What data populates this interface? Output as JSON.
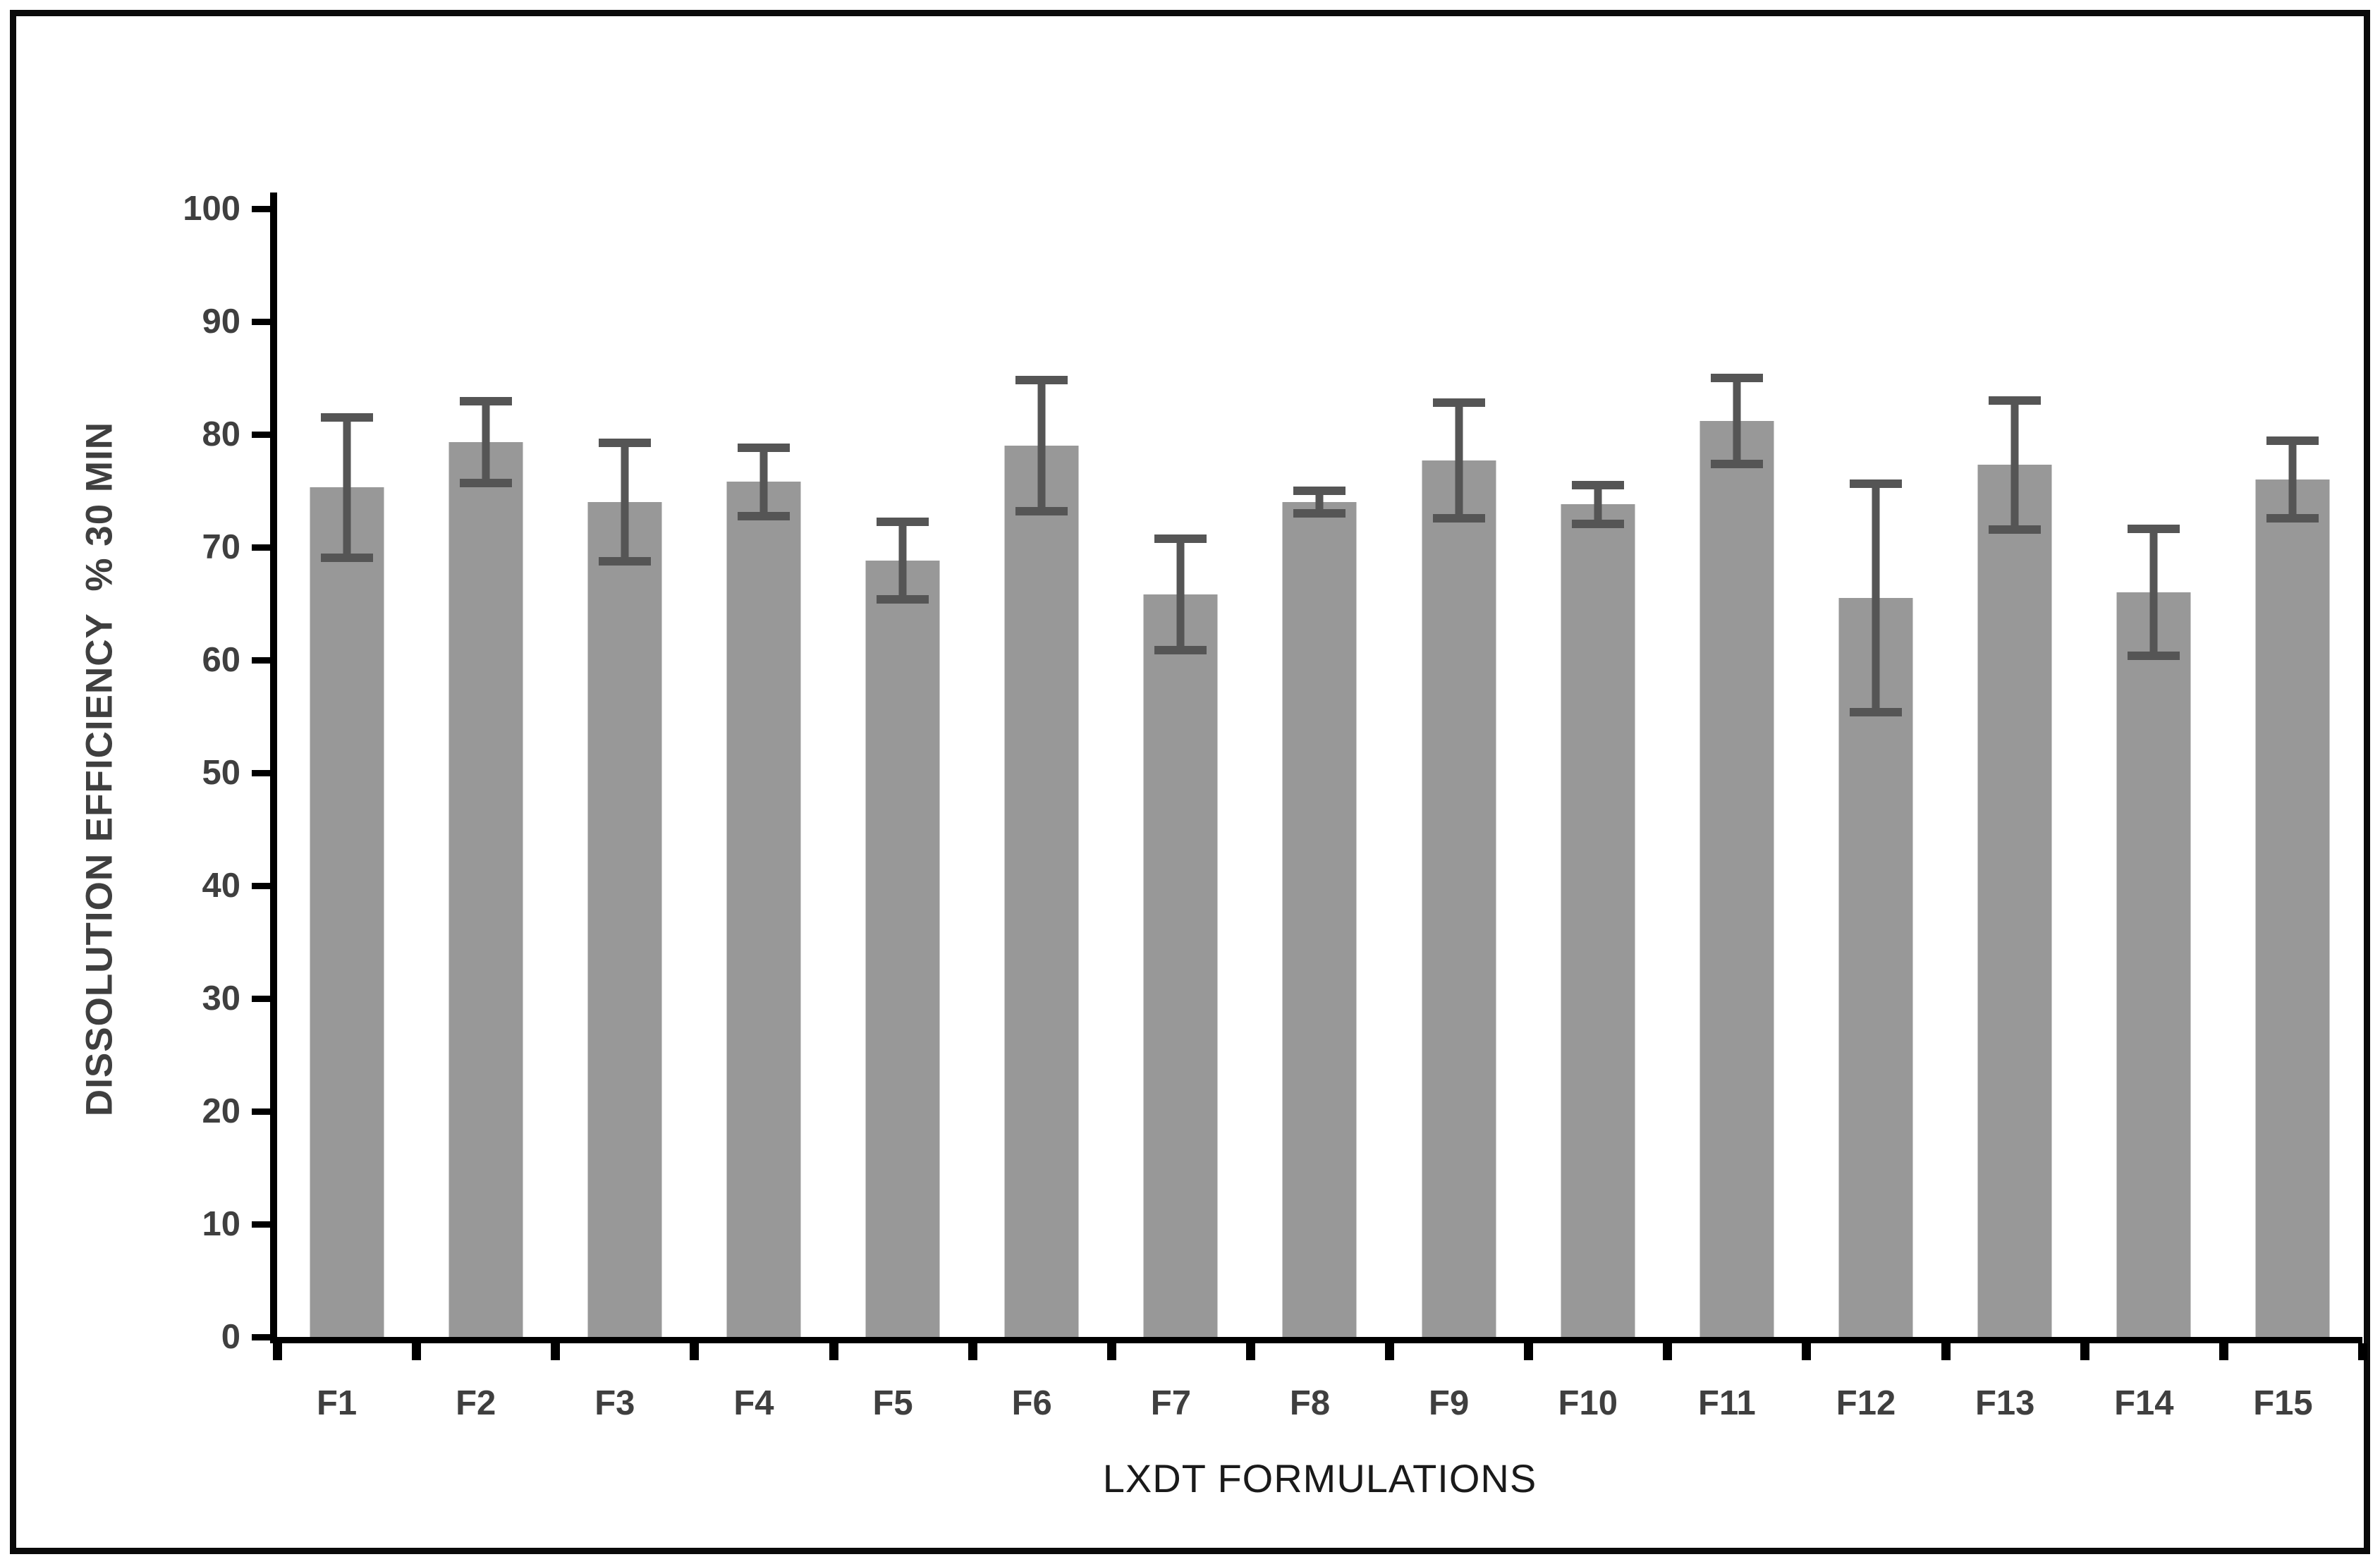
{
  "chart_data": {
    "type": "bar",
    "title": "",
    "categories": [
      "F1",
      "F2",
      "F3",
      "F4",
      "F5",
      "F6",
      "F7",
      "F8",
      "F9",
      "F10",
      "F11",
      "F12",
      "F13",
      "F14",
      "F15"
    ],
    "values": [
      75.3,
      79.3,
      74.0,
      75.8,
      68.8,
      79.0,
      65.8,
      74.0,
      77.7,
      73.8,
      81.2,
      65.5,
      77.3,
      66.0,
      76.0
    ],
    "errors": [
      6.6,
      4.0,
      5.6,
      3.4,
      3.8,
      6.2,
      5.3,
      1.4,
      5.5,
      2.1,
      4.2,
      10.5,
      6.1,
      6.0,
      3.8
    ],
    "error_style": "symmetric",
    "xlabel": "LXDT FORMULATIONS",
    "ylabel": "DISSOLUTION EFFICIENCY  % 30 MIN",
    "ylim": [
      0,
      100
    ],
    "yticks": [
      0,
      10,
      20,
      30,
      40,
      50,
      60,
      70,
      80,
      90,
      100
    ],
    "grid": false,
    "legend": false,
    "colors": {
      "bar_fill": "#989898",
      "error_bar": "#555555",
      "axis_line": "#000000",
      "tick_label": "#3f3f3f",
      "x_title": "#1a1a1a",
      "y_title": "#3f3f3f",
      "frame": "#0a0a0a",
      "background": "#ffffff"
    }
  }
}
